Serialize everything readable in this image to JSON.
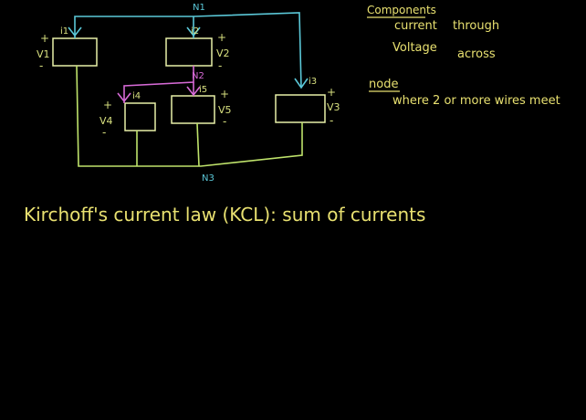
{
  "colors": {
    "background": "#000000",
    "circuit_wire": "#bfe36b",
    "node1_wire": "#5bc8d8",
    "node2_wire": "#d66ad6",
    "terminal_text": "#d8e07f",
    "notes_text": "#e8e070"
  },
  "nodes": {
    "n1": "N1",
    "n2": "N2",
    "n3": "N3"
  },
  "components": {
    "c1": {
      "current": "i1",
      "voltage": "V1",
      "plus": "+",
      "minus": "-"
    },
    "c2": {
      "current": "i2",
      "voltage": "V2",
      "plus": "+",
      "minus": "-"
    },
    "c3": {
      "current": "i3",
      "voltage": "V3",
      "plus": "+",
      "minus": "-"
    },
    "c4": {
      "current": "i4",
      "voltage": "V4",
      "plus": "+",
      "minus": "-"
    },
    "c5": {
      "current": "i5",
      "voltage": "V5",
      "plus": "+",
      "minus": "-"
    }
  },
  "notes": {
    "components_heading": "Components",
    "current_label": "current",
    "through_label": "through",
    "voltage_label": "Voltage",
    "across_label": "across",
    "node_heading": "node",
    "node_definition": "where 2 or more wires meet"
  },
  "law_text": "Kirchoff's current law (KCL): sum of currents"
}
